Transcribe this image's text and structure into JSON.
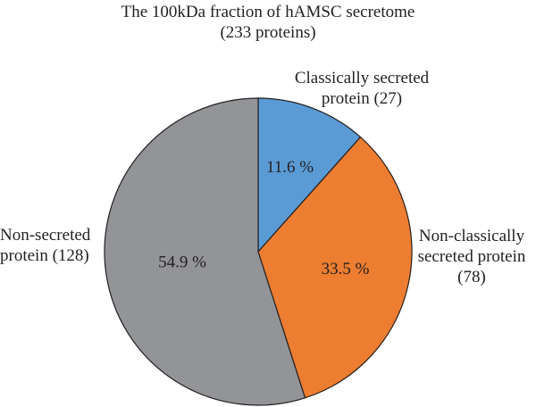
{
  "chart_data": {
    "type": "pie",
    "title": "The 100kDa fraction of hAMSC secretome",
    "subtitle": "(233 proteins)",
    "slices": [
      {
        "label_lines": [
          "Classically secreted",
          "protein (27)"
        ],
        "count": 27,
        "percent": 11.6,
        "value_label": "11.6 %",
        "color": "#5b9bd5"
      },
      {
        "label_lines": [
          "Non-classically",
          "secreted protein",
          "(78)"
        ],
        "count": 78,
        "percent": 33.5,
        "value_label": "33.5 %",
        "color": "#ed7d31"
      },
      {
        "label_lines": [
          "Non-secreted",
          "protein (128)"
        ],
        "count": 128,
        "percent": 54.9,
        "value_label": "54.9 %",
        "color": "#929497"
      }
    ],
    "start": "12 o'clock",
    "direction": "clockwise",
    "outline_color": "#231f20"
  }
}
